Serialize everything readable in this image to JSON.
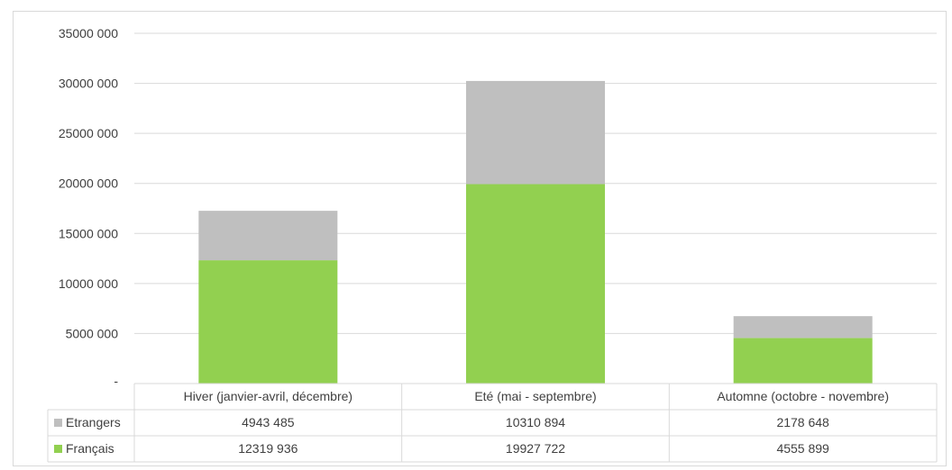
{
  "chart_data": {
    "type": "bar",
    "stacked": true,
    "categories": [
      "Hiver (janvier-avril, décembre)",
      "Eté (mai - septembre)",
      "Automne (octobre - novembre)"
    ],
    "series": [
      {
        "name": "Français",
        "values": [
          12319936,
          19927722,
          4555899
        ],
        "color": "#92d050",
        "value_labels": [
          "12319 936",
          "19927 722",
          "4555 899"
        ]
      },
      {
        "name": "Etrangers",
        "values": [
          4943485,
          10310894,
          2178648
        ],
        "color": "#bfbfbf",
        "value_labels": [
          "4943 485",
          "10310 894",
          "2178 648"
        ]
      }
    ],
    "ylim": [
      0,
      35000000
    ],
    "yticks": [
      0,
      5000000,
      10000000,
      15000000,
      20000000,
      25000000,
      30000000,
      35000000
    ],
    "ytick_labels": [
      "-",
      "5000 000",
      "10000 000",
      "15000 000",
      "20000 000",
      "25000 000",
      "30000 000",
      "35000 000"
    ],
    "grid": true,
    "data_table": true,
    "data_table_row_order": [
      "Etrangers",
      "Français"
    ],
    "title": "",
    "xlabel": "",
    "ylabel": ""
  },
  "colors": {
    "gridline": "#d9d9d9",
    "text": "#404040"
  }
}
